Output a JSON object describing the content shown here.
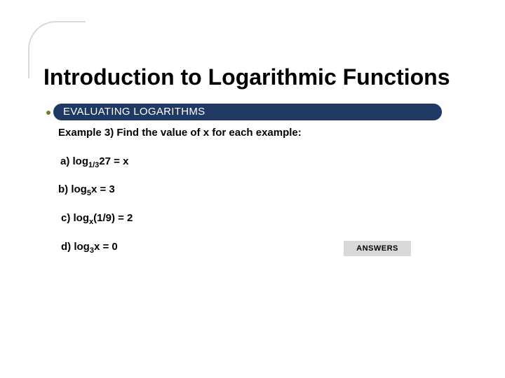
{
  "colors": {
    "bar_background": "#1f3864",
    "bar_text": "#ffffff",
    "title_text": "#000000",
    "body_text": "#000000",
    "answers_bg": "#d9d9d9",
    "answers_text": "#000000",
    "accent_dot": "#6f7f2e",
    "decor_line": "#d9d9d9",
    "slide_bg": "#ffffff"
  },
  "title": "Introduction to Logarithmic Functions",
  "section_label": "EVALUATING LOGARITHMS",
  "example_prompt": "Example 3) Find the value of x for each example:",
  "items": {
    "a": {
      "prefix": "a) log",
      "sub": "1/3",
      "rest": "27 = x"
    },
    "b": {
      "prefix": "b) log",
      "sub": "5",
      "rest": "x = 3"
    },
    "c": {
      "prefix": "c) log",
      "sub": "x",
      "rest": "(1/9) = 2"
    },
    "d": {
      "prefix": "d) log",
      "sub": "3",
      "rest": "x = 0"
    }
  },
  "answers_button": "ANSWERS"
}
